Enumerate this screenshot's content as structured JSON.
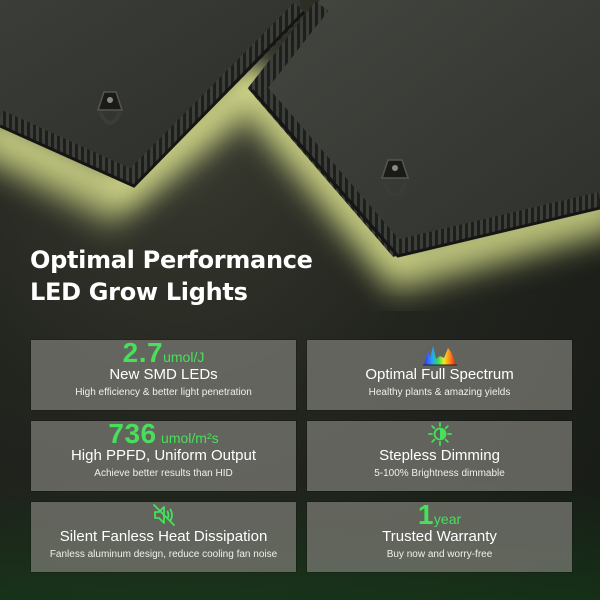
{
  "heading": {
    "line1": "Optimal Performance",
    "line2": "LED Grow Lights"
  },
  "features": [
    {
      "value": "2.7",
      "unit": "umol/J",
      "title": "New SMD LEDs",
      "subtitle": "High efficiency & better light penetration"
    },
    {
      "icon": "spectrum-chart-icon",
      "title": "Optimal Full Spectrum",
      "subtitle": "Healthy plants & amazing yields"
    },
    {
      "value": "736",
      "unit": "umol/m²s",
      "title": "High PPFD, Uniform Output",
      "subtitle": "Achieve better results than HID"
    },
    {
      "icon": "dimmer-sun-icon",
      "title": "Stepless Dimming",
      "subtitle": "5-100% Brightness dimmable"
    },
    {
      "icon": "no-fan-icon",
      "title": "Silent Fanless Heat Dissipation",
      "subtitle": "Fanless aluminum design, reduce cooling fan noise"
    },
    {
      "value": "1",
      "unit": "year",
      "title": "Trusted Warranty",
      "subtitle": "Buy now and worry-free"
    }
  ],
  "colors": {
    "accent_green": "#47e05a",
    "card_bg": "#767670",
    "glow_yellow": "#f2f5a0"
  }
}
